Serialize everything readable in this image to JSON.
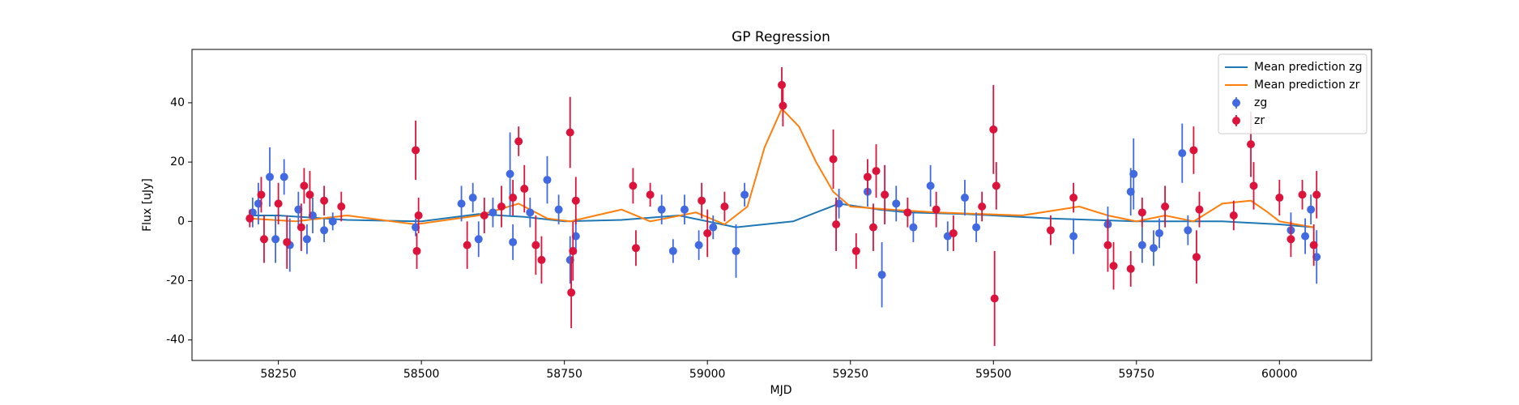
{
  "chart_data": {
    "type": "scatter",
    "title": "GP Regression",
    "xlabel": "MJD",
    "ylabel": "Flux [uJy]",
    "xlim": [
      58099,
      60161
    ],
    "xticks": [
      58250,
      58500,
      58750,
      59000,
      59250,
      59500,
      59750,
      60000
    ],
    "ylim": [
      -46.9,
      58
    ],
    "yticks": [
      -40,
      -20,
      0,
      20,
      40
    ],
    "grid": false,
    "legend": "upper right",
    "series": [
      {
        "name": "Mean prediction zg",
        "style": "line",
        "color": "#1f77b4",
        "x": [
          58200,
          58250,
          58370,
          58500,
          58600,
          58680,
          58750,
          58850,
          58950,
          59050,
          59150,
          59230,
          59300,
          59350,
          59450,
          59500,
          59600,
          59750,
          59900,
          60000,
          60060
        ],
        "values": [
          2,
          2,
          0.5,
          0,
          2.5,
          1.5,
          0,
          0.5,
          2,
          -2,
          0,
          6,
          4,
          3,
          2.5,
          2,
          1,
          0,
          0,
          -1,
          -2
        ]
      },
      {
        "name": "Mean prediction zr",
        "style": "line",
        "color": "#ff7f0e",
        "x": [
          58200,
          58280,
          58370,
          58490,
          58600,
          58670,
          58720,
          58760,
          58850,
          58900,
          58980,
          59030,
          59070,
          59100,
          59130,
          59160,
          59190,
          59220,
          59250,
          59320,
          59400,
          59550,
          59650,
          59700,
          59750,
          59800,
          59850,
          59900,
          59950,
          59980,
          60000,
          60060
        ],
        "values": [
          1,
          0,
          2,
          -1,
          2,
          6,
          1,
          0,
          4,
          0,
          3,
          -1,
          5,
          25,
          38,
          32,
          20,
          10,
          5,
          4,
          3,
          2,
          5,
          2,
          0,
          2,
          0,
          6,
          7,
          3,
          0,
          -2
        ]
      },
      {
        "name": "zg",
        "style": "errorbar",
        "color": "#4169e1",
        "x": [
          58205,
          58215,
          58235,
          58245,
          58260,
          58270,
          58285,
          58300,
          58310,
          58330,
          58345,
          58490,
          58570,
          58590,
          58600,
          58625,
          58655,
          58660,
          58690,
          58720,
          58740,
          58760,
          58770,
          58920,
          58940,
          58960,
          58985,
          59010,
          59050,
          59065,
          59230,
          59280,
          59305,
          59330,
          59360,
          59390,
          59420,
          59450,
          59470,
          59640,
          59700,
          59740,
          59745,
          59760,
          59780,
          59790,
          59830,
          59840,
          60020,
          60045,
          60055,
          60065
        ],
        "values": [
          3,
          6,
          15,
          -6,
          15,
          -8,
          4,
          -6,
          2,
          -3,
          0,
          -2,
          6,
          8,
          -6,
          3,
          16,
          -7,
          3,
          14,
          4,
          -13,
          -5,
          4,
          -10,
          4,
          -8,
          -2,
          -10,
          9,
          6,
          10,
          -18,
          6,
          -2,
          12,
          -5,
          8,
          -2,
          -5,
          -1,
          10,
          16,
          -8,
          -9,
          -4,
          23,
          -3,
          -3,
          -5,
          4,
          -12
        ],
        "errors": [
          5,
          7,
          10,
          8,
          6,
          9,
          6,
          5,
          6,
          4,
          3,
          3,
          6,
          5,
          6,
          5,
          14,
          6,
          5,
          8,
          5,
          8,
          6,
          5,
          4,
          5,
          5,
          4,
          9,
          4,
          5,
          5,
          11,
          6,
          5,
          7,
          5,
          6,
          5,
          6,
          6,
          8,
          12,
          6,
          6,
          5,
          10,
          5,
          6,
          6,
          5,
          9
        ]
      },
      {
        "name": "zr",
        "style": "errorbar",
        "color": "#dc143c",
        "x": [
          58200,
          58220,
          58225,
          58250,
          58265,
          58290,
          58295,
          58305,
          58330,
          58360,
          58490,
          58492,
          58495,
          58580,
          58610,
          58640,
          58660,
          58670,
          58680,
          58700,
          58710,
          58760,
          58762,
          58765,
          58770,
          58870,
          58875,
          58900,
          58990,
          59000,
          59030,
          59130,
          59132,
          59220,
          59225,
          59260,
          59280,
          59290,
          59295,
          59310,
          59350,
          59400,
          59430,
          59480,
          59500,
          59502,
          59505,
          59600,
          59640,
          59700,
          59710,
          59740,
          59760,
          59800,
          59850,
          59855,
          59860,
          59920,
          59950,
          59955,
          60000,
          60020,
          60040,
          60060,
          60065
        ],
        "values": [
          1,
          9,
          -6,
          6,
          -7,
          -2,
          12,
          9,
          7,
          5,
          24,
          -10,
          2,
          -8,
          2,
          5,
          8,
          27,
          11,
          -8,
          -13,
          30,
          -24,
          -10,
          7,
          12,
          -9,
          9,
          7,
          -4,
          5,
          46,
          39,
          21,
          -1,
          -10,
          15,
          -2,
          17,
          9,
          3,
          4,
          -4,
          5,
          31,
          -26,
          12,
          -3,
          8,
          -8,
          -15,
          -16,
          3,
          5,
          24,
          -12,
          4,
          2,
          26,
          12,
          8,
          -6,
          9,
          -8,
          9
        ],
        "errors": [
          3,
          6,
          8,
          7,
          9,
          8,
          6,
          8,
          5,
          5,
          10,
          6,
          6,
          8,
          6,
          7,
          6,
          5,
          8,
          10,
          8,
          12,
          12,
          10,
          8,
          6,
          6,
          4,
          6,
          8,
          5,
          6,
          7,
          10,
          9,
          6,
          6,
          8,
          9,
          10,
          5,
          6,
          6,
          5,
          15,
          16,
          8,
          5,
          5,
          9,
          8,
          6,
          5,
          7,
          8,
          9,
          6,
          5,
          11,
          8,
          6,
          6,
          5,
          7,
          8
        ]
      }
    ]
  }
}
